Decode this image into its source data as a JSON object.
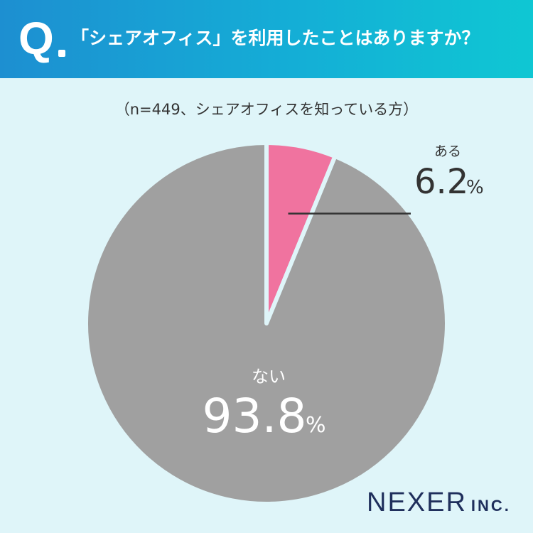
{
  "header": {
    "q_mark": "Q",
    "question": "「シェアオフィス」を利用したことはありますか？"
  },
  "subtitle": "（n=449、シェアオフィスを知っている方）",
  "brand": {
    "name": "NEXER",
    "suffix": "INC."
  },
  "colors": {
    "yes": "#f0739f",
    "no": "#a0a0a0",
    "background": "#dff5f9",
    "header_start": "#1d8fd1",
    "header_end": "#0fc7d3"
  },
  "chart_data": {
    "type": "pie",
    "start_angle_deg": 0,
    "direction": "clockwise",
    "slices": [
      {
        "label": "ある",
        "value": 6.2,
        "display": "6.2",
        "unit": "%",
        "color": "#f0739f"
      },
      {
        "label": "ない",
        "value": 93.8,
        "display": "93.8",
        "unit": "%",
        "color": "#a0a0a0"
      }
    ]
  }
}
